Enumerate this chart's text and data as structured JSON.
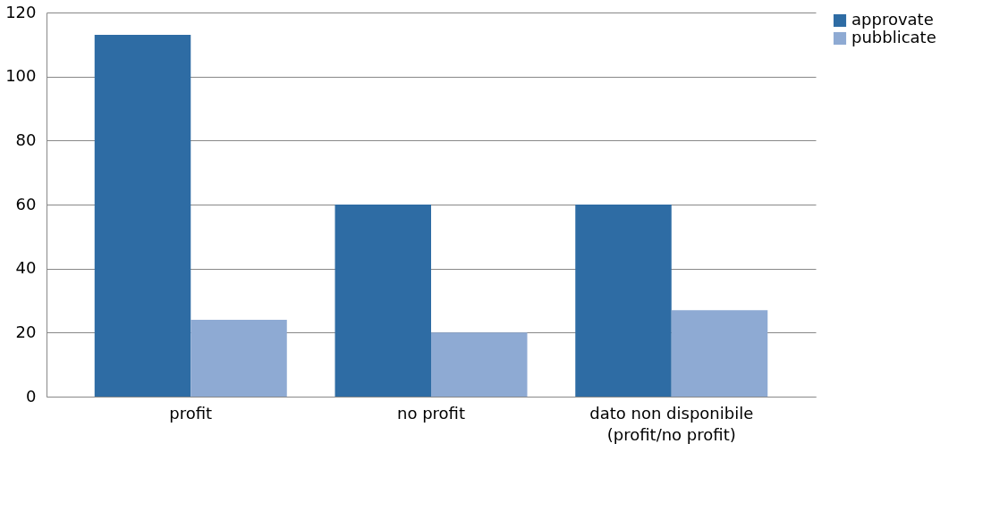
{
  "chart_data": {
    "type": "bar",
    "categories": [
      "profit",
      "no profit",
      "dato non disponibile\n(profit/no profit)"
    ],
    "series": [
      {
        "name": "approvate",
        "color": "#2e6ca4",
        "values": [
          113,
          60,
          60
        ]
      },
      {
        "name": "pubblicate",
        "color": "#8eaad3",
        "values": [
          24,
          20,
          27
        ]
      }
    ],
    "ylim": [
      0,
      120
    ],
    "yticks": [
      0,
      20,
      40,
      60,
      80,
      100,
      120
    ],
    "grid": "y",
    "legend": "right"
  }
}
